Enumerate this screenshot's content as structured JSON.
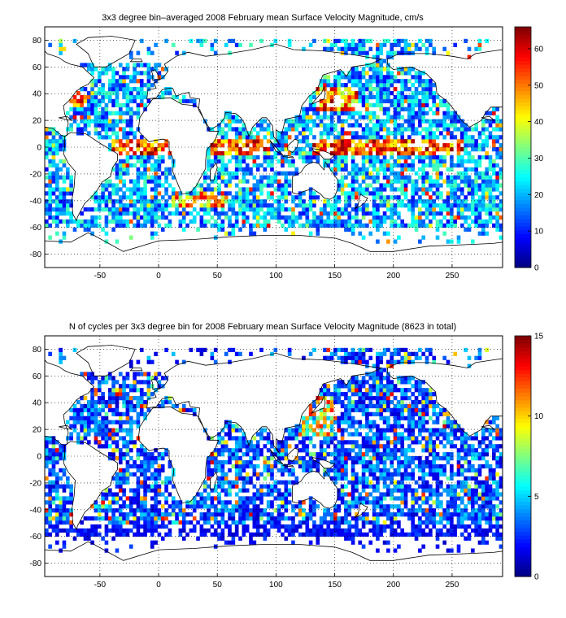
{
  "chart_data": [
    {
      "type": "heatmap",
      "title": "3x3 degree bin–averaged 2008 February mean Surface Velocity Magnitude, cm/s",
      "xlabel": "",
      "ylabel": "",
      "xlim": [
        -97,
        293
      ],
      "ylim": [
        -90,
        90
      ],
      "xticks": [
        -50,
        0,
        50,
        100,
        150,
        200,
        250
      ],
      "yticks": [
        -80,
        -60,
        -40,
        -20,
        0,
        20,
        40,
        60,
        80
      ],
      "grid": true,
      "bin_size_deg": 3,
      "colorbar": {
        "min": 0,
        "max": 66,
        "ticks": [
          0,
          10,
          20,
          30,
          40,
          50,
          60
        ],
        "colormap": "jet"
      },
      "colormap_colors": [
        "#00008f",
        "#0000ff",
        "#00ffff",
        "#ffff00",
        "#ff0000",
        "#800000"
      ]
    },
    {
      "type": "heatmap",
      "title": "N of cycles per 3x3 degree bin for 2008 February mean Surface Velocity Magnitude (8623 in total)",
      "xlabel": "",
      "ylabel": "",
      "xlim": [
        -97,
        293
      ],
      "ylim": [
        -90,
        90
      ],
      "xticks": [
        -50,
        0,
        50,
        100,
        150,
        200,
        250
      ],
      "yticks": [
        -80,
        -60,
        -40,
        -20,
        0,
        20,
        40,
        60,
        80
      ],
      "grid": true,
      "bin_size_deg": 3,
      "total_cycles": 8623,
      "colorbar": {
        "min": 0,
        "max": 15,
        "ticks": [
          0,
          5,
          10,
          15
        ],
        "colormap": "jet"
      },
      "colormap_colors": [
        "#00008f",
        "#0000ff",
        "#00ffff",
        "#ffff00",
        "#ff0000",
        "#800000"
      ]
    }
  ]
}
